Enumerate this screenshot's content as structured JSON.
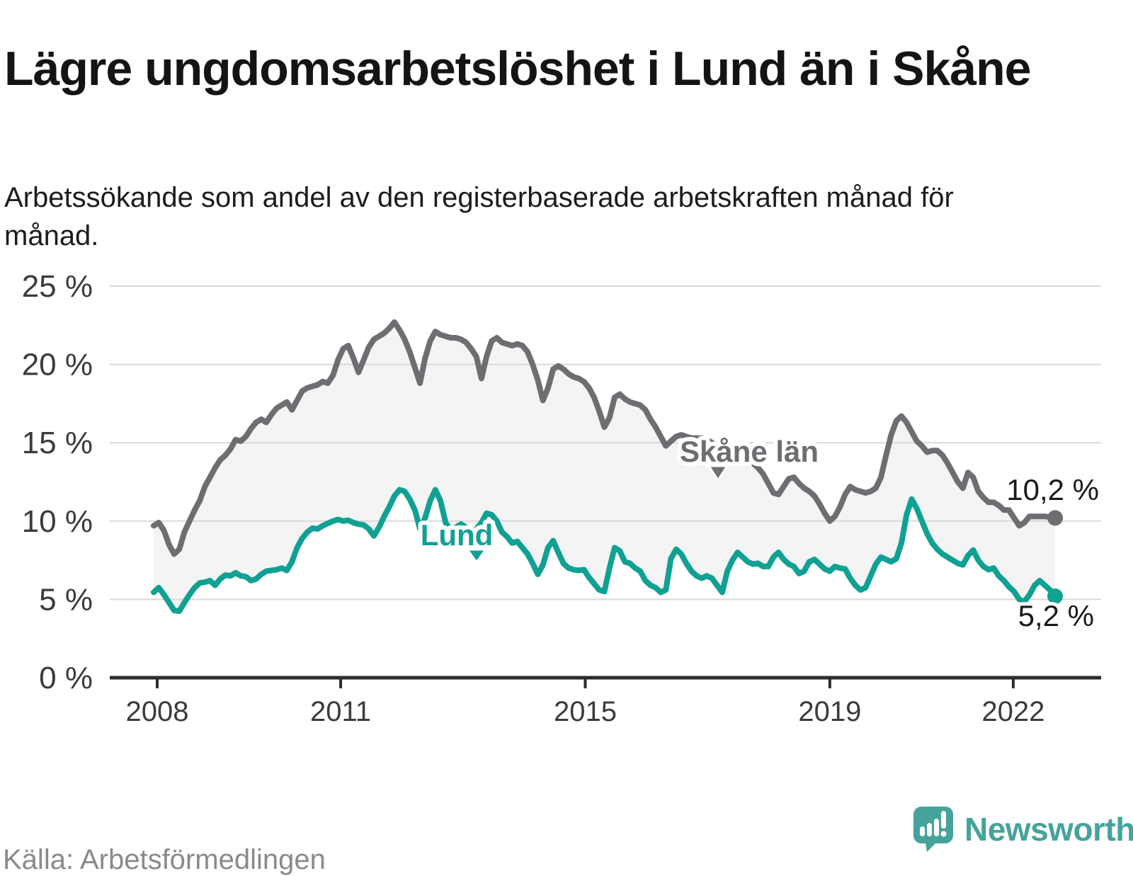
{
  "header": {
    "title": "Lägre ungdomsarbetslöshet i Lund än i Skåne",
    "subtitle": "Arbetssökande som andel av den registerbaserade arbetskraften månad för månad."
  },
  "footer": {
    "source": "Källa: Arbetsförmedlingen",
    "brand": "Newsworthy"
  },
  "colors": {
    "skane": "#6d6d72",
    "lund": "#10a193",
    "band": "#f4f4f4",
    "grid": "#d9d9d9",
    "axis": "#2d2d2e",
    "brand_teal": "#45a39b",
    "end_label": "#1a1a1a"
  },
  "chart_data": {
    "type": "line",
    "x_start": "2008-01",
    "x_end": "2022-09",
    "points_per_year": 12,
    "grid": "horizontal",
    "legend_position": "inline-labels",
    "band_fill_between_series": true,
    "ylim": [
      0,
      25
    ],
    "x_ticks": [
      {
        "year": 2008,
        "label": "2008"
      },
      {
        "year": 2011,
        "label": "2011"
      },
      {
        "year": 2015,
        "label": "2015"
      },
      {
        "year": 2019,
        "label": "2019"
      },
      {
        "year": 2022,
        "label": "2022"
      }
    ],
    "y_ticks": [
      {
        "value": 25,
        "label": "25 %"
      },
      {
        "value": 20,
        "label": "20 %"
      },
      {
        "value": 15,
        "label": "15 %"
      },
      {
        "value": 10,
        "label": "10 %"
      },
      {
        "value": 5,
        "label": "5 %"
      },
      {
        "value": 0,
        "label": "0 %"
      }
    ],
    "series": [
      {
        "name": "Skåne län",
        "color": "#6d6d72",
        "end_label": "10,2 %",
        "end_value": 10.2,
        "values": [
          9.7,
          9.9,
          9.4,
          8.5,
          7.9,
          8.2,
          9.3,
          10,
          10.7,
          11.3,
          12.2,
          12.8,
          13.4,
          13.9,
          14.2,
          14.6,
          15.2,
          15.1,
          15.4,
          15.9,
          16.3,
          16.5,
          16.3,
          16.8,
          17.2,
          17.4,
          17.6,
          17.1,
          17.7,
          18.3,
          18.5,
          18.6,
          18.7,
          18.9,
          18.8,
          19.3,
          20.3,
          21,
          21.2,
          20.4,
          19.5,
          20.3,
          21.1,
          21.6,
          21.8,
          22,
          22.3,
          22.7,
          22.2,
          21.6,
          20.8,
          19.8,
          18.8,
          20.4,
          21.5,
          22.1,
          21.9,
          21.8,
          21.7,
          21.7,
          21.6,
          21.4,
          21,
          20.5,
          19.1,
          20.5,
          21.5,
          21.7,
          21.4,
          21.3,
          21.2,
          21.3,
          21.2,
          20.8,
          20,
          19,
          17.7,
          18.5,
          19.7,
          19.9,
          19.7,
          19.4,
          19.2,
          19.1,
          18.9,
          18.5,
          17.9,
          17,
          16,
          16.6,
          17.9,
          18.1,
          17.8,
          17.6,
          17.5,
          17.4,
          17.1,
          16.5,
          16,
          15.4,
          14.8,
          15.1,
          15.4,
          15.5,
          15.4,
          15.3,
          15.3,
          15.3,
          15.2,
          15,
          14.7,
          14.4,
          14.2,
          14.4,
          14.4,
          14.2,
          14,
          13.7,
          13.4,
          13,
          12.4,
          11.8,
          11.7,
          12.2,
          12.7,
          12.8,
          12.4,
          12.1,
          11.9,
          11.6,
          11.1,
          10.5,
          10,
          10.3,
          10.9,
          11.7,
          12.2,
          12,
          11.9,
          11.8,
          11.9,
          12.1,
          12.8,
          14.2,
          15.5,
          16.4,
          16.7,
          16.3,
          15.7,
          15.1,
          14.8,
          14.4,
          14.5,
          14.5,
          14.2,
          13.7,
          13.1,
          12.5,
          12.1,
          13.1,
          12.8,
          11.9,
          11.5,
          11.2,
          11.2,
          11,
          10.7,
          10.7,
          10.2,
          9.7,
          9.9,
          10.3,
          10.3,
          10.3,
          10.3,
          10.25,
          10.2
        ]
      },
      {
        "name": "Lund",
        "color": "#10a193",
        "end_label": "5,2 %",
        "end_value": 5.2,
        "values": [
          5.45,
          5.75,
          5.3,
          4.8,
          4.3,
          4.25,
          4.8,
          5.3,
          5.75,
          6.05,
          6.1,
          6.2,
          5.9,
          6.3,
          6.55,
          6.5,
          6.7,
          6.5,
          6.45,
          6.2,
          6.3,
          6.6,
          6.8,
          6.85,
          6.9,
          7,
          6.85,
          7.4,
          8.3,
          8.9,
          9.3,
          9.55,
          9.5,
          9.7,
          9.85,
          10,
          10.1,
          10,
          10.05,
          9.9,
          9.8,
          9.75,
          9.5,
          9.05,
          9.6,
          10.3,
          10.9,
          11.6,
          12,
          11.9,
          11.4,
          10.7,
          9.5,
          10.2,
          11.3,
          12,
          11.3,
          9.9,
          9.4,
          9.6,
          9.8,
          9.6,
          9.3,
          9.5,
          9.9,
          10.5,
          10.4,
          10,
          9.3,
          9,
          8.6,
          8.7,
          8.3,
          7.9,
          7.3,
          6.6,
          7.2,
          8.3,
          8.75,
          8,
          7.3,
          7,
          6.9,
          6.85,
          6.9,
          6.4,
          6,
          5.6,
          5.5,
          7,
          8.3,
          8.1,
          7.4,
          7.3,
          7,
          6.8,
          6.2,
          5.9,
          5.75,
          5.45,
          5.6,
          7.6,
          8.2,
          7.9,
          7.3,
          6.8,
          6.5,
          6.35,
          6.5,
          6.35,
          5.9,
          5.45,
          6.8,
          7.5,
          8,
          7.7,
          7.4,
          7.25,
          7.3,
          7.1,
          7.1,
          7.7,
          8,
          7.55,
          7.25,
          7.1,
          6.65,
          6.8,
          7.4,
          7.55,
          7.25,
          6.95,
          6.8,
          7.1,
          7,
          6.95,
          6.35,
          5.9,
          5.6,
          5.75,
          6.5,
          7.25,
          7.7,
          7.55,
          7.4,
          7.6,
          8.6,
          10.4,
          11.4,
          10.8,
          10,
          9.2,
          8.6,
          8.2,
          7.9,
          7.7,
          7.5,
          7.3,
          7.2,
          7.8,
          8.15,
          7.5,
          7.1,
          6.9,
          7,
          6.5,
          6.2,
          5.8,
          5.5,
          5,
          4.85,
          5.3,
          5.9,
          6.2,
          5.9,
          5.6,
          5.2
        ]
      }
    ]
  }
}
